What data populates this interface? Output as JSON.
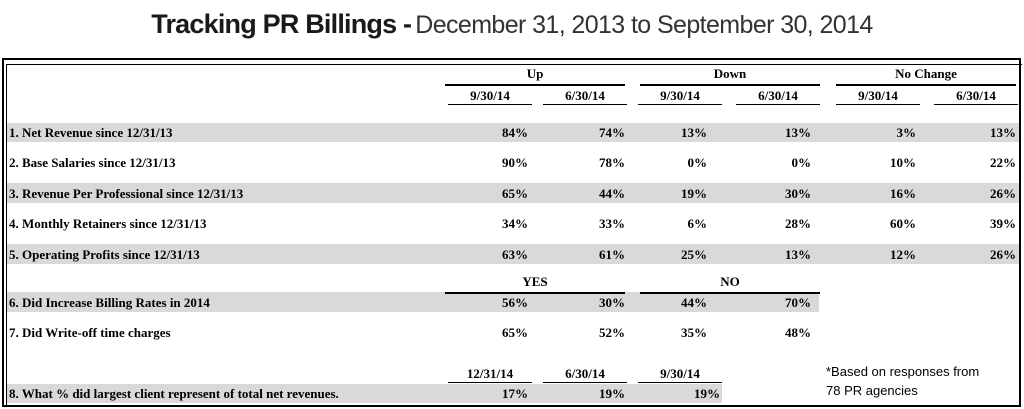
{
  "title": {
    "bold": "Tracking PR Billings -",
    "light": "December 31, 2013 to September 30, 2014"
  },
  "groups": {
    "up": "Up",
    "down": "Down",
    "no_change": "No Change"
  },
  "dates": {
    "a": "9/30/14",
    "b": "6/30/14"
  },
  "rows": [
    {
      "label": "1. Net Revenue since 12/31/13",
      "values": [
        "84%",
        "74%",
        "13%",
        "13%",
        "3%",
        "13%"
      ]
    },
    {
      "label": "2. Base Salaries since 12/31/13",
      "values": [
        "90%",
        "78%",
        "0%",
        "0%",
        "10%",
        "22%"
      ]
    },
    {
      "label": "3. Revenue Per Professional since 12/31/13",
      "values": [
        "65%",
        "44%",
        "19%",
        "30%",
        "16%",
        "26%"
      ]
    },
    {
      "label": "4. Monthly Retainers since 12/31/13",
      "values": [
        "34%",
        "33%",
        "6%",
        "28%",
        "60%",
        "39%"
      ]
    },
    {
      "label": "5. Operating Profits since 12/31/13",
      "values": [
        "63%",
        "61%",
        "25%",
        "13%",
        "12%",
        "26%"
      ]
    }
  ],
  "yesno": {
    "yes": "YES",
    "no": "NO",
    "rows": [
      {
        "label": "6. Did Increase Billing Rates in 2014",
        "values": [
          "56%",
          "30%",
          "44%",
          "70%"
        ]
      },
      {
        "label": "7. Did Write-off time charges",
        "values": [
          "65%",
          "52%",
          "35%",
          "48%"
        ]
      }
    ]
  },
  "client": {
    "dates": [
      "12/31/14",
      "6/30/14",
      "9/30/14"
    ],
    "label": "8. What % did largest client represent of total net revenues.",
    "values": [
      "17%",
      "19%",
      "19%"
    ]
  },
  "note": {
    "line1": "*Based on responses from",
    "line2": "78 PR agencies"
  }
}
